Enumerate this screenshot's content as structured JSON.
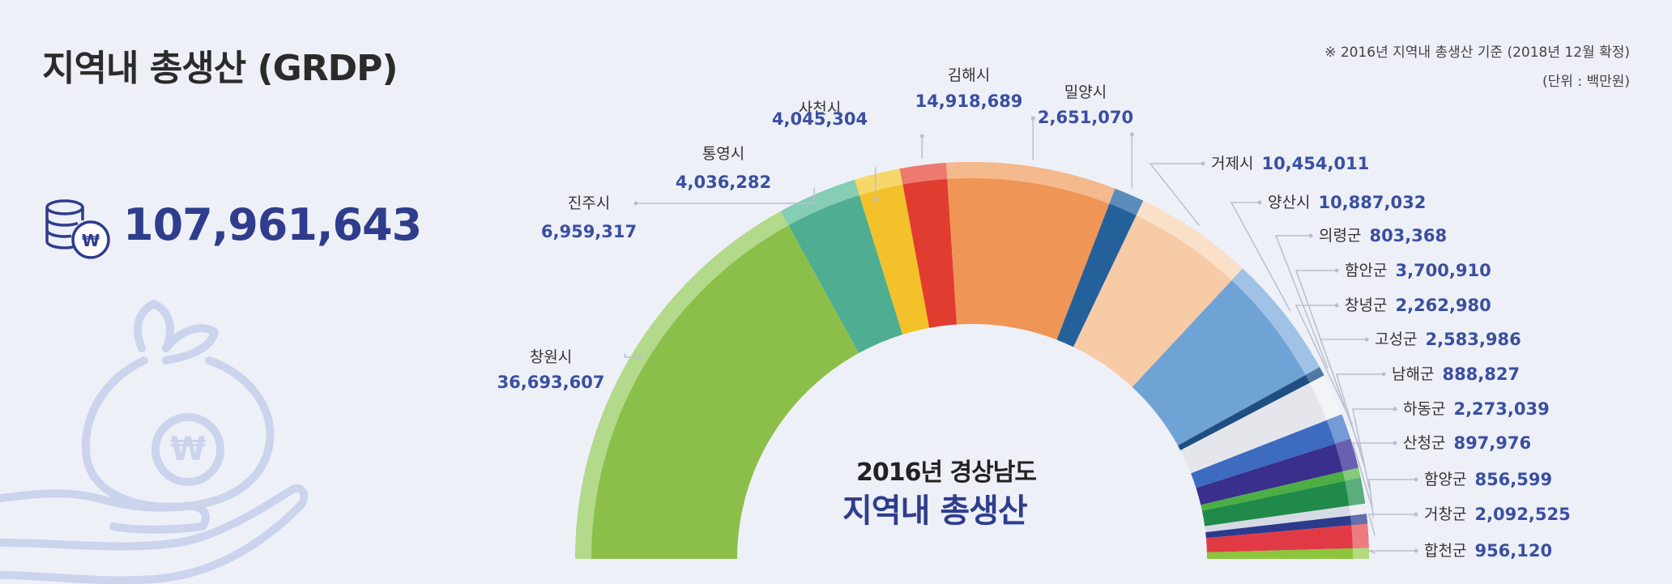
{
  "title": "지역내 총생산 (GRDP)",
  "note_basis": "※ 2016년 지역내 총생산 기준 (2018년 12월 확정)",
  "note_unit": "(단위 : 백만원)",
  "total": "107,961,643",
  "center_line1": "2016년 경상남도",
  "center_line2": "지역내 총생산",
  "chart_data": {
    "type": "pie",
    "variant": "half-donut",
    "title": "지역내 총생산 (GRDP)",
    "total": 107961643,
    "series": [
      {
        "name": "창원시",
        "value": 36693607,
        "value_label": "36,693,607",
        "color": "#8cbf4a",
        "highlight": "#b3d98a"
      },
      {
        "name": "진주시",
        "value": 6959317,
        "value_label": "6,959,317",
        "color": "#4fae92",
        "highlight": "#86cdb6"
      },
      {
        "name": "통영시",
        "value": 4036282,
        "value_label": "4,036,282",
        "color": "#f3c12a",
        "highlight": "#f7d76a"
      },
      {
        "name": "사천시",
        "value": 4045304,
        "value_label": "4,045,304",
        "color": "#e03c2f",
        "highlight": "#ec7a70"
      },
      {
        "name": "김해시",
        "value": 14918689,
        "value_label": "14,918,689",
        "color": "#ef9556",
        "highlight": "#f5b98e"
      },
      {
        "name": "밀양시",
        "value": 2651070,
        "value_label": "2,651,070",
        "color": "#24609a",
        "highlight": "#5a8cbc"
      },
      {
        "name": "거제시",
        "value": 10454011,
        "value_label": "10,454,011",
        "color": "#f7cba6",
        "highlight": "#fae0c9"
      },
      {
        "name": "양산시",
        "value": 10887032,
        "value_label": "10,887,032",
        "color": "#6fa3d6",
        "highlight": "#9fc2e6"
      },
      {
        "name": "의령군",
        "value": 803368,
        "value_label": "803,368",
        "color": "#1e4e82",
        "highlight": "#4f78a6"
      },
      {
        "name": "함안군",
        "value": 3700910,
        "value_label": "3,700,910",
        "color": "#e4e6ec",
        "highlight": "#f3f4f8"
      },
      {
        "name": "창녕군",
        "value": 2262980,
        "value_label": "2,262,980",
        "color": "#3d6bbf",
        "highlight": "#759ad6"
      },
      {
        "name": "고성군",
        "value": 2583986,
        "value_label": "2,583,986",
        "color": "#3a2f8c",
        "highlight": "#6a60b0"
      },
      {
        "name": "남해군",
        "value": 888827,
        "value_label": "888,827",
        "color": "#4cae43",
        "highlight": "#84cb7c"
      },
      {
        "name": "하동군",
        "value": 2273039,
        "value_label": "2,273,039",
        "color": "#1f8a4a",
        "highlight": "#5aae7c"
      },
      {
        "name": "산청군",
        "value": 897976,
        "value_label": "897,976",
        "color": "#d5dae5",
        "highlight": "#ebeef4"
      },
      {
        "name": "함양군",
        "value": 856599,
        "value_label": "856,599",
        "color": "#2c3a8c",
        "highlight": "#6470b0"
      },
      {
        "name": "거창군",
        "value": 2092525,
        "value_label": "2,092,525",
        "color": "#e23a45",
        "highlight": "#ee7a82"
      },
      {
        "name": "합천군",
        "value": 956120,
        "value_label": "956,120",
        "color": "#8cc43c",
        "highlight": "#b2da7e"
      }
    ]
  }
}
